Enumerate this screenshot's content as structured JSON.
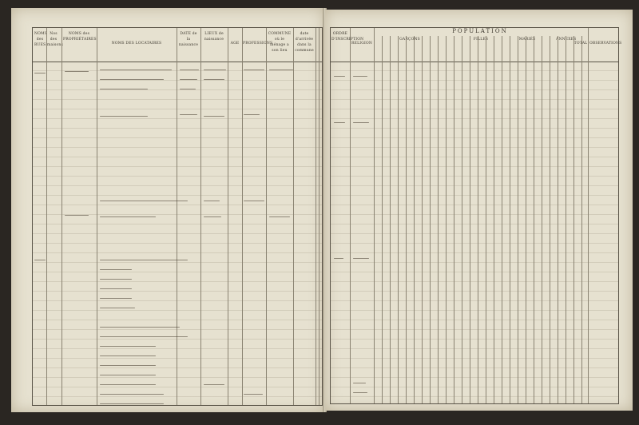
{
  "left_page": {
    "headers": [
      "NOMS des RUES",
      "Nos des maisons",
      "NOMS des PROPRIÉTAIRES",
      "NOMS DES LOCATAIRES",
      "DATE de la naissance",
      "LIEUX de naissance",
      "AGE",
      "PROFESSIONS",
      "COMMUNE où le ménage a son lieu",
      "date d'arrivée dans la commune"
    ]
  },
  "right_page": {
    "headers": {
      "ordre": "ORDRE D'INSCRIPTION",
      "religion": "RELIGION",
      "population": "POPULATION",
      "garcons": "GARÇONS",
      "filles": "FILLES",
      "maries": "MARIÉS",
      "annexes": "ANNEXES",
      "total": "TOTAL",
      "observations": "OBSERVATIONS"
    }
  },
  "colors": {
    "paper": "#e6e1d0",
    "ink": "#3a352c",
    "background": "#2a2622"
  }
}
